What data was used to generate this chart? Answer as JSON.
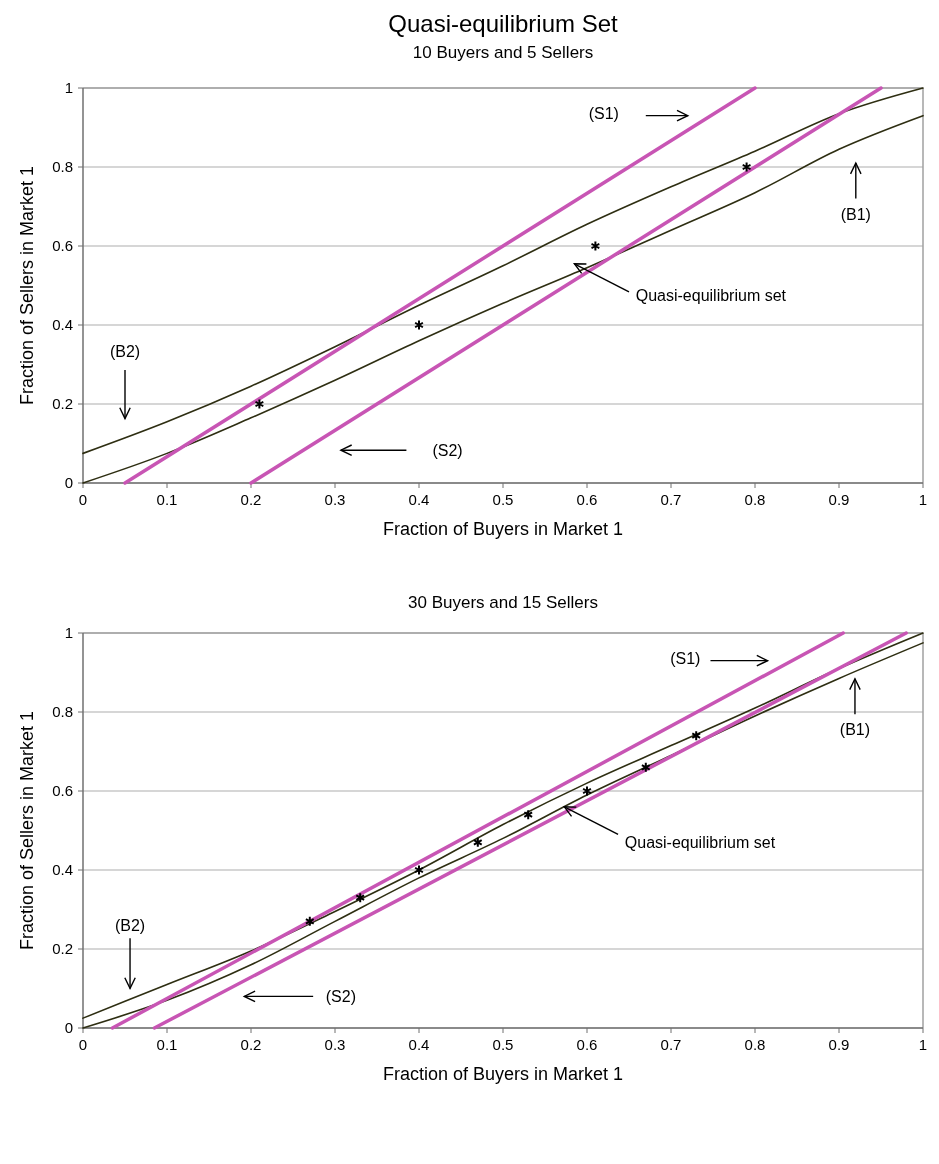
{
  "chart_data": [
    {
      "type": "line",
      "title": "Quasi-equilibrium Set",
      "subtitle": "10 Buyers and 5 Sellers",
      "xlabel": "Fraction of Buyers in Market 1",
      "ylabel": "Fraction of Sellers in Market 1",
      "xlim": [
        0,
        1
      ],
      "ylim": [
        0,
        1
      ],
      "xticks": [
        0,
        0.1,
        0.2,
        0.3,
        0.4,
        0.5,
        0.6,
        0.7,
        0.8,
        0.9,
        1
      ],
      "yticks": [
        0,
        0.2,
        0.4,
        0.6,
        0.8,
        1
      ],
      "grid": "y",
      "marker": "none",
      "line_style": "solid",
      "series": [
        {
          "color": "#2e2e12",
          "x": [
            0,
            0.1,
            0.2,
            0.3,
            0.4,
            0.5,
            0.6,
            0.7,
            0.8,
            0.9,
            1
          ],
          "values": [
            0.075,
            0.155,
            0.245,
            0.345,
            0.45,
            0.55,
            0.655,
            0.75,
            0.84,
            0.935,
            1.0
          ]
        },
        {
          "color": "#2e2e12",
          "x": [
            0,
            0.1,
            0.2,
            0.3,
            0.4,
            0.5,
            0.6,
            0.7,
            0.8,
            0.9,
            1
          ],
          "values": [
            0,
            0.075,
            0.165,
            0.26,
            0.36,
            0.455,
            0.545,
            0.64,
            0.735,
            0.845,
            0.93
          ]
        },
        {
          "color": "#c855b4",
          "x": [
            0.05,
            0.8
          ],
          "values": [
            0,
            1
          ]
        },
        {
          "color": "#c855b4",
          "x": [
            0.2,
            0.95
          ],
          "values": [
            0,
            1
          ]
        },
        {
          "type": "scatter",
          "marker": "cross",
          "color": "#000000",
          "x": [
            0.21,
            0.4,
            0.61,
            0.79
          ],
          "values": [
            0.2,
            0.4,
            0.6,
            0.8
          ]
        }
      ],
      "annotations": [
        "(S1)",
        "(B1)",
        "Quasi-equilibrium set",
        "(B2)",
        "(S2)"
      ]
    },
    {
      "type": "line",
      "title": "30 Buyers and 15 Sellers",
      "xlabel": "Fraction of Buyers in Market 1",
      "ylabel": "Fraction of Sellers in Market 1",
      "xlim": [
        0,
        1
      ],
      "ylim": [
        0,
        1
      ],
      "xticks": [
        0,
        0.1,
        0.2,
        0.3,
        0.4,
        0.5,
        0.6,
        0.7,
        0.8,
        0.9,
        1
      ],
      "yticks": [
        0,
        0.2,
        0.4,
        0.6,
        0.8,
        1
      ],
      "grid": "y",
      "marker": "none",
      "line_style": "solid",
      "series": [
        {
          "color": "#2e2e12",
          "x": [
            0,
            0.1,
            0.2,
            0.3,
            0.4,
            0.5,
            0.6,
            0.7,
            0.8,
            0.9,
            1
          ],
          "values": [
            0.025,
            0.11,
            0.195,
            0.295,
            0.4,
            0.515,
            0.62,
            0.715,
            0.81,
            0.91,
            1.0
          ]
        },
        {
          "color": "#2e2e12",
          "x": [
            0,
            0.1,
            0.2,
            0.3,
            0.4,
            0.5,
            0.6,
            0.7,
            0.8,
            0.9,
            1
          ],
          "values": [
            0,
            0.07,
            0.16,
            0.27,
            0.38,
            0.48,
            0.59,
            0.69,
            0.79,
            0.885,
            0.975
          ]
        },
        {
          "color": "#c855b4",
          "x": [
            0.035,
            0.905
          ],
          "values": [
            0,
            1
          ]
        },
        {
          "color": "#c855b4",
          "x": [
            0.085,
            0.98
          ],
          "values": [
            0,
            1
          ]
        },
        {
          "type": "scatter",
          "marker": "cross",
          "color": "#000000",
          "x": [
            0.27,
            0.33,
            0.4,
            0.47,
            0.53,
            0.6,
            0.67,
            0.73
          ],
          "values": [
            0.27,
            0.33,
            0.4,
            0.47,
            0.54,
            0.6,
            0.66,
            0.74
          ]
        }
      ],
      "annotations": [
        "(S1)",
        "(B1)",
        {
          "text": "Quasi-equilibrium set",
          "x": 0.573,
          "y": 0.56
        },
        "(B2)",
        "(S2)"
      ]
    }
  ]
}
